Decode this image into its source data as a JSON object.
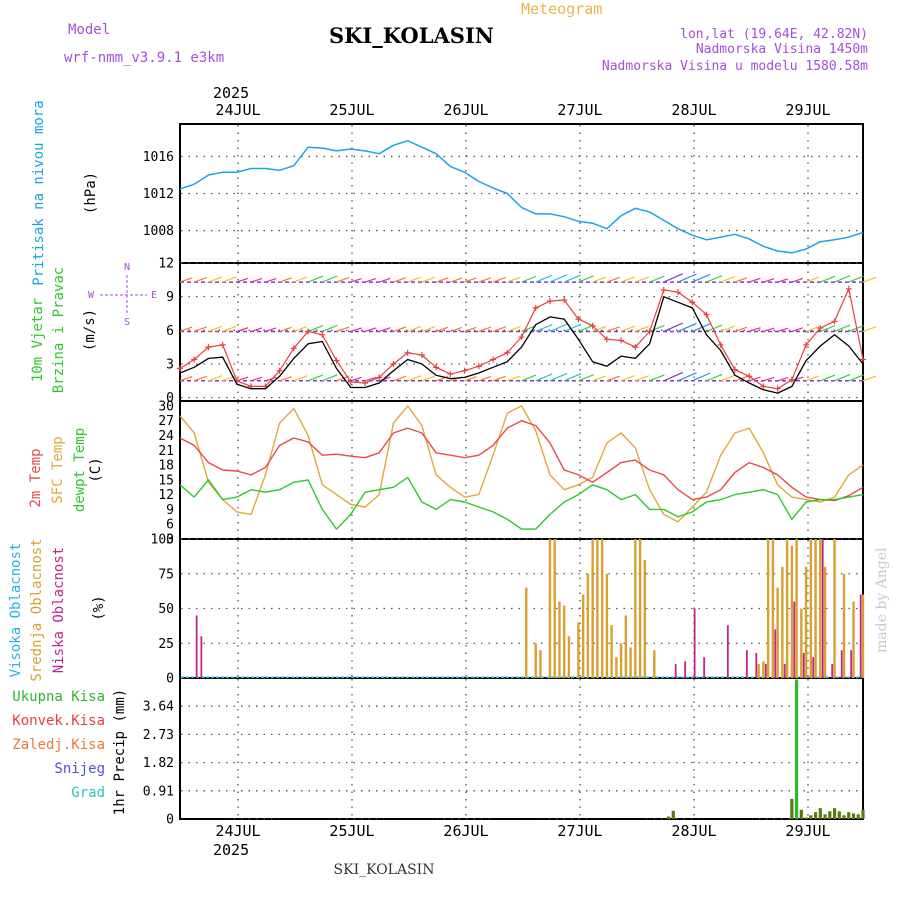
{
  "header": {
    "model_label": "Model",
    "model_name": "wrf-nmm_v3.9.1 e3km",
    "meteogram_label": "Meteogram",
    "station": "SKI_KOLASIN",
    "coords": "lon,lat (19.64E, 42.82N)",
    "elevation": "Nadmorska Visina 1450m",
    "model_elevation": "Nadmorska Visina u modelu 1580.58m"
  },
  "footer": {
    "station": "SKI_KOLASIN",
    "watermark": "made by Angel"
  },
  "time_axis": {
    "year": "2025",
    "dates": [
      "24JUL",
      "25JUL",
      "26JUL",
      "27JUL",
      "28JUL",
      "29JUL"
    ],
    "start_hour": 0,
    "end_hour": 144
  },
  "panels": {
    "pressure": {
      "label": "Pritisak na nivou mora",
      "unit": "(hPa)",
      "ticks": [
        "1008",
        "1012",
        "1016"
      ]
    },
    "wind": {
      "label1": "10m Vjetar",
      "label2": "Brzina i Pravac",
      "unit": "(m/s)",
      "ticks": [
        "0",
        "3",
        "6",
        "9",
        "12"
      ],
      "compass_n": "N",
      "compass_s": "S",
      "compass_w": "W",
      "compass_e": "E"
    },
    "temperature": {
      "label1": "2m Temp",
      "label2": "SFC Temp",
      "label3": "dewpt Temp",
      "unit": "(C)",
      "ticks": [
        "3",
        "6",
        "9",
        "12",
        "15",
        "18",
        "21",
        "24",
        "27",
        "30"
      ]
    },
    "clouds": {
      "label1": "Visoka Oblacnost",
      "label2": "Srednja Oblacnost",
      "label3": "Niska Oblacnost",
      "unit": "(%)",
      "ticks": [
        "0",
        "25",
        "50",
        "75",
        "100"
      ]
    },
    "precip": {
      "unit": "1hr Precip (mm)",
      "ticks": [
        "0",
        "0.91",
        "1.82",
        "2.73",
        "3.64"
      ],
      "legend": [
        "Ukupna Kisa",
        "Konvek.Kisa",
        "Zaledj.Kisa",
        "Snijeg",
        "Grad"
      ]
    }
  },
  "colors": {
    "pressure": "#1aa3e6",
    "wind_speed": "#000000",
    "gust": "#e84040",
    "t2m": "#e84a4a",
    "tsfc": "#e0a83c",
    "dewpt": "#2ec72e",
    "cloud_high": "#26b5d9",
    "cloud_mid": "#d8a030",
    "cloud_low": "#c2248a",
    "rain_total": "#2db82d",
    "rain_conv": "#e84040",
    "rain_frozen": "#f07830",
    "snow": "#5050e0",
    "hail": "#30c0c0"
  },
  "chart_data": [
    {
      "type": "line",
      "title": "Pritisak na nivou mora",
      "ylabel": "(hPa)",
      "ylim": [
        1004.5,
        1019.5
      ],
      "x": [
        0,
        3,
        6,
        9,
        12,
        15,
        18,
        21,
        24,
        27,
        30,
        33,
        36,
        39,
        42,
        45,
        48,
        51,
        54,
        57,
        60,
        63,
        66,
        69,
        72,
        75,
        78,
        81,
        84,
        87,
        90,
        93,
        96,
        99,
        102,
        105,
        108,
        111,
        114,
        117,
        120,
        123,
        126,
        129,
        132,
        135,
        138,
        141,
        144
      ],
      "series": [
        {
          "name": "SLP",
          "values": [
            1012.5,
            1013.0,
            1014.0,
            1014.3,
            1014.3,
            1014.7,
            1014.7,
            1014.5,
            1015.0,
            1017.0,
            1016.9,
            1016.6,
            1016.8,
            1016.6,
            1016.3,
            1017.2,
            1017.7,
            1017.0,
            1016.3,
            1014.9,
            1014.3,
            1013.3,
            1012.6,
            1012.0,
            1010.5,
            1009.8,
            1009.8,
            1009.5,
            1009.0,
            1008.8,
            1008.2,
            1009.6,
            1010.4,
            1010.0,
            1009.1,
            1008.2,
            1007.5,
            1007.0,
            1007.3,
            1007.6,
            1007.1,
            1006.3,
            1005.8,
            1005.6,
            1006.0,
            1006.8,
            1007.0,
            1007.3,
            1007.8
          ]
        }
      ]
    },
    {
      "type": "line",
      "title": "10m Vjetar Brzina i Pravac",
      "ylabel": "(m/s)",
      "ylim": [
        -0.3,
        12
      ],
      "x": [
        0,
        3,
        6,
        9,
        12,
        15,
        18,
        21,
        24,
        27,
        30,
        33,
        36,
        39,
        42,
        45,
        48,
        51,
        54,
        57,
        60,
        63,
        66,
        69,
        72,
        75,
        78,
        81,
        84,
        87,
        90,
        93,
        96,
        99,
        102,
        105,
        108,
        111,
        114,
        117,
        120,
        123,
        126,
        129,
        132,
        135,
        138,
        141,
        144
      ],
      "series": [
        {
          "name": "wind speed",
          "values": [
            2.2,
            2.7,
            3.5,
            3.6,
            1.2,
            0.8,
            0.8,
            1.9,
            3.5,
            4.8,
            5.0,
            2.6,
            0.9,
            0.9,
            1.3,
            2.4,
            3.4,
            3.0,
            2.0,
            1.7,
            1.8,
            2.2,
            2.7,
            3.2,
            4.5,
            6.5,
            7.2,
            7.0,
            5.2,
            3.2,
            2.8,
            3.7,
            3.5,
            4.8,
            9.0,
            8.5,
            8.0,
            5.6,
            4.2,
            2.0,
            1.3,
            0.7,
            0.4,
            1.0,
            3.3,
            4.6,
            5.6,
            4.6,
            3.0
          ]
        },
        {
          "name": "gust",
          "values": [
            2.6,
            3.4,
            4.5,
            4.7,
            1.5,
            1.0,
            1.0,
            2.4,
            4.4,
            5.9,
            5.6,
            3.3,
            1.4,
            1.3,
            1.8,
            3.0,
            4.0,
            3.8,
            2.7,
            2.1,
            2.4,
            2.8,
            3.4,
            4.0,
            5.4,
            8.0,
            8.6,
            8.7,
            7.0,
            6.4,
            5.2,
            5.1,
            4.5,
            5.9,
            9.6,
            9.4,
            8.5,
            7.4,
            4.7,
            2.5,
            1.9,
            1.0,
            0.8,
            1.6,
            4.7,
            6.2,
            6.8,
            9.7,
            3.4
          ]
        }
      ]
    },
    {
      "type": "line",
      "title": "2m Temp / SFC Temp / dewpt Temp",
      "ylabel": "(C)",
      "ylim": [
        3,
        31
      ],
      "x": [
        0,
        3,
        6,
        9,
        12,
        15,
        18,
        21,
        24,
        27,
        30,
        33,
        36,
        39,
        42,
        45,
        48,
        51,
        54,
        57,
        60,
        63,
        66,
        69,
        72,
        75,
        78,
        81,
        84,
        87,
        90,
        93,
        96,
        99,
        102,
        105,
        108,
        111,
        114,
        117,
        120,
        123,
        126,
        129,
        132,
        135,
        138,
        141,
        144
      ],
      "series": [
        {
          "name": "2m Temp",
          "values": [
            23.5,
            22.0,
            18.5,
            17.0,
            16.8,
            16.0,
            17.5,
            22.0,
            23.5,
            22.7,
            20.0,
            20.2,
            19.8,
            19.5,
            20.5,
            24.5,
            25.5,
            24.5,
            20.5,
            20.0,
            19.5,
            20.0,
            22.0,
            25.5,
            27.0,
            26.0,
            22.5,
            17.0,
            16.0,
            14.5,
            16.5,
            18.5,
            19.0,
            17.0,
            16.0,
            13.0,
            11.0,
            11.5,
            13.0,
            16.5,
            18.5,
            17.5,
            16.0,
            13.5,
            11.5,
            11.0,
            10.8,
            11.8,
            13.5
          ]
        },
        {
          "name": "SFC Temp",
          "values": [
            28.0,
            24.5,
            14.5,
            11.0,
            8.5,
            8.0,
            16.0,
            26.5,
            29.5,
            24.0,
            14.0,
            12.0,
            10.0,
            9.5,
            12.0,
            26.5,
            30.0,
            26.0,
            16.0,
            13.5,
            11.5,
            12.0,
            20.0,
            28.5,
            30.0,
            25.0,
            16.0,
            13.0,
            14.0,
            15.5,
            22.5,
            24.5,
            21.5,
            13.0,
            8.0,
            6.5,
            9.5,
            12.5,
            20.0,
            24.5,
            25.5,
            20.5,
            14.0,
            11.5,
            11.0,
            10.5,
            11.5,
            16.0,
            18.0
          ]
        },
        {
          "name": "dewpt Temp",
          "values": [
            14.0,
            11.5,
            15.0,
            11.0,
            11.5,
            13.0,
            12.5,
            13.0,
            14.5,
            15.0,
            9.0,
            5.0,
            8.0,
            12.5,
            13.0,
            13.5,
            15.5,
            10.5,
            9.0,
            11.0,
            10.5,
            9.5,
            8.5,
            7.0,
            5.0,
            5.0,
            8.0,
            10.5,
            12.0,
            14.0,
            13.0,
            11.0,
            12.0,
            9.0,
            9.0,
            7.5,
            8.5,
            10.5,
            11.0,
            12.0,
            12.5,
            13.0,
            12.0,
            7.0,
            10.5,
            11.0,
            11.0,
            11.5,
            12.0
          ]
        }
      ]
    },
    {
      "type": "bar",
      "title": "Visoka / Srednja / Niska Oblacnost",
      "ylabel": "(%)",
      "ylim": [
        0,
        100
      ],
      "series": [
        {
          "name": "Srednja Oblacnost",
          "x": [
            73,
            75,
            76,
            78,
            79,
            80,
            81,
            82,
            84,
            85,
            86,
            87,
            88,
            89,
            90,
            91,
            92,
            93,
            94,
            95,
            96,
            97,
            98,
            100,
            122,
            123,
            124,
            125,
            126,
            127,
            128,
            129,
            130,
            131,
            132,
            133,
            134,
            135,
            136,
            138,
            140,
            142,
            144
          ],
          "values": [
            65,
            25,
            20,
            100,
            100,
            55,
            52,
            30,
            40,
            60,
            75,
            100,
            100,
            100,
            75,
            38,
            15,
            25,
            45,
            22,
            100,
            100,
            85,
            20,
            10,
            12,
            100,
            100,
            65,
            80,
            100,
            95,
            100,
            50,
            80,
            100,
            100,
            100,
            80,
            100,
            75,
            55,
            60
          ]
        },
        {
          "name": "Niska Oblacnost",
          "x": [
            3,
            4,
            104,
            106,
            108,
            110,
            115,
            119,
            121,
            123,
            125,
            127,
            129,
            131,
            133,
            135,
            137,
            139,
            141,
            143
          ],
          "values": [
            45,
            30,
            10,
            12,
            50,
            15,
            38,
            20,
            18,
            10,
            35,
            10,
            55,
            18,
            15,
            100,
            10,
            20,
            20,
            60
          ]
        }
      ]
    },
    {
      "type": "bar",
      "title": "1hr Precip",
      "ylabel": "1hr Precip (mm)",
      "ylim": [
        0,
        4.55
      ],
      "series": [
        {
          "name": "Ukupna Kisa",
          "x": [
            103,
            104,
            129,
            130,
            131,
            132,
            133,
            134,
            135,
            136,
            137,
            138,
            139,
            140,
            141,
            142,
            143,
            144
          ],
          "values": [
            0.08,
            0.26,
            0.65,
            4.5,
            0.3,
            0.05,
            0.12,
            0.22,
            0.35,
            0.15,
            0.25,
            0.35,
            0.25,
            0.12,
            0.22,
            0.18,
            0.15,
            0.3
          ]
        }
      ]
    }
  ]
}
